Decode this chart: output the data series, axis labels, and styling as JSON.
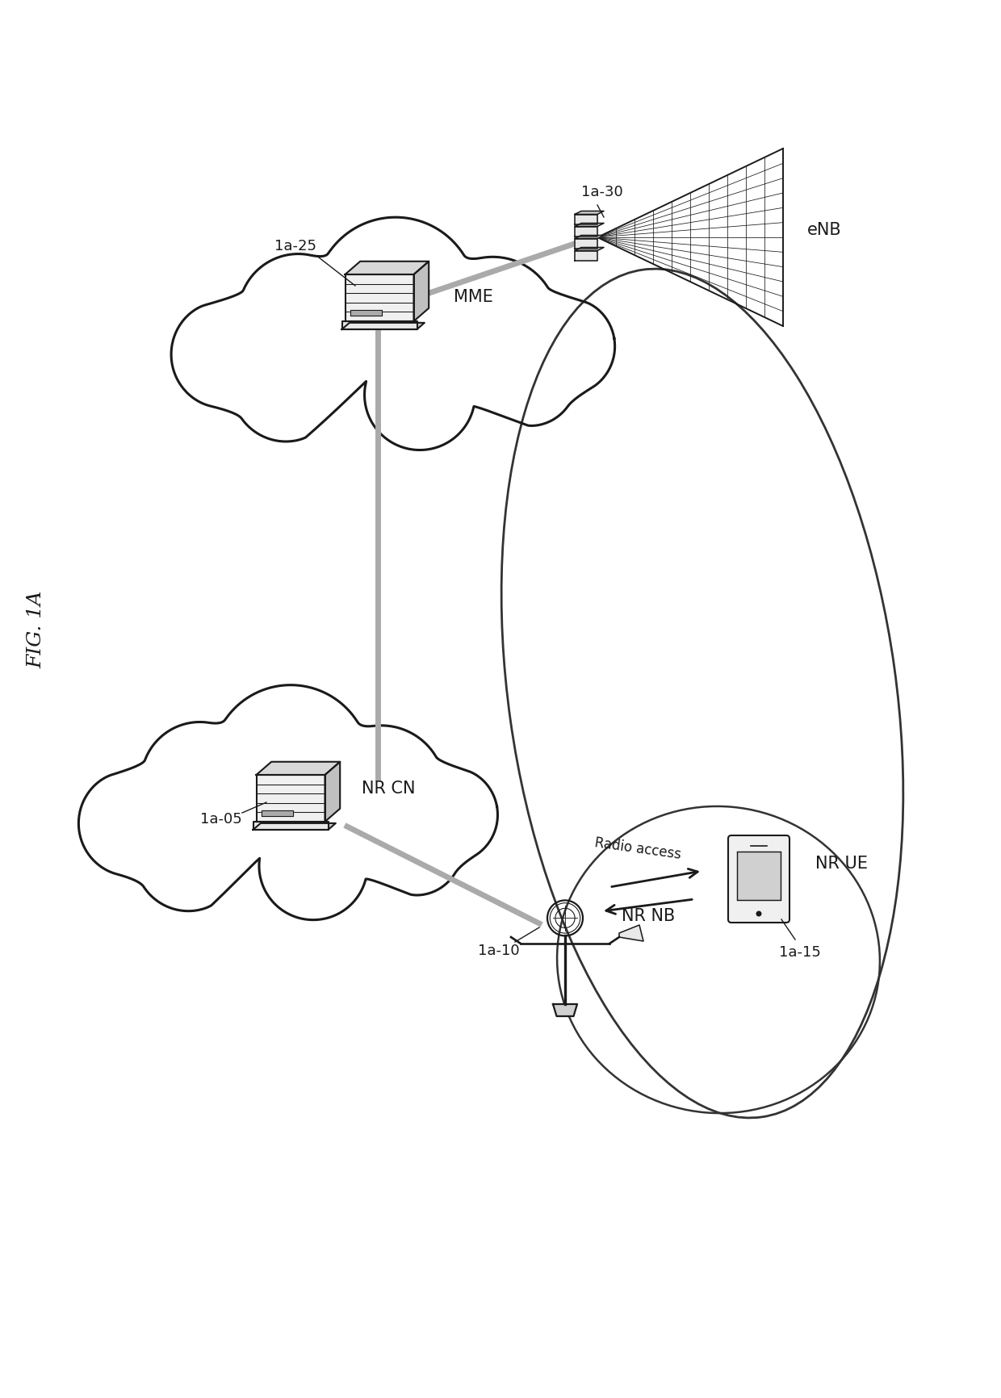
{
  "fig_label": "FIG. 1A",
  "background_color": "#ffffff",
  "labels": {
    "mme": "MME",
    "nr_cn": "NR CN",
    "enb": "eNB",
    "nr_nb": "NR NB",
    "nr_ue": "NR UE",
    "radio_access": "Radio access",
    "ref_1a05": "1a-05",
    "ref_1a10": "1a-10",
    "ref_1a15": "1a-15",
    "ref_1a25": "1a-25",
    "ref_1a30": "1a-30"
  },
  "colors": {
    "black": "#1a1a1a",
    "dark": "#222222",
    "gray_line": "#999999",
    "light_gray": "#cccccc",
    "bg": "#ffffff"
  }
}
